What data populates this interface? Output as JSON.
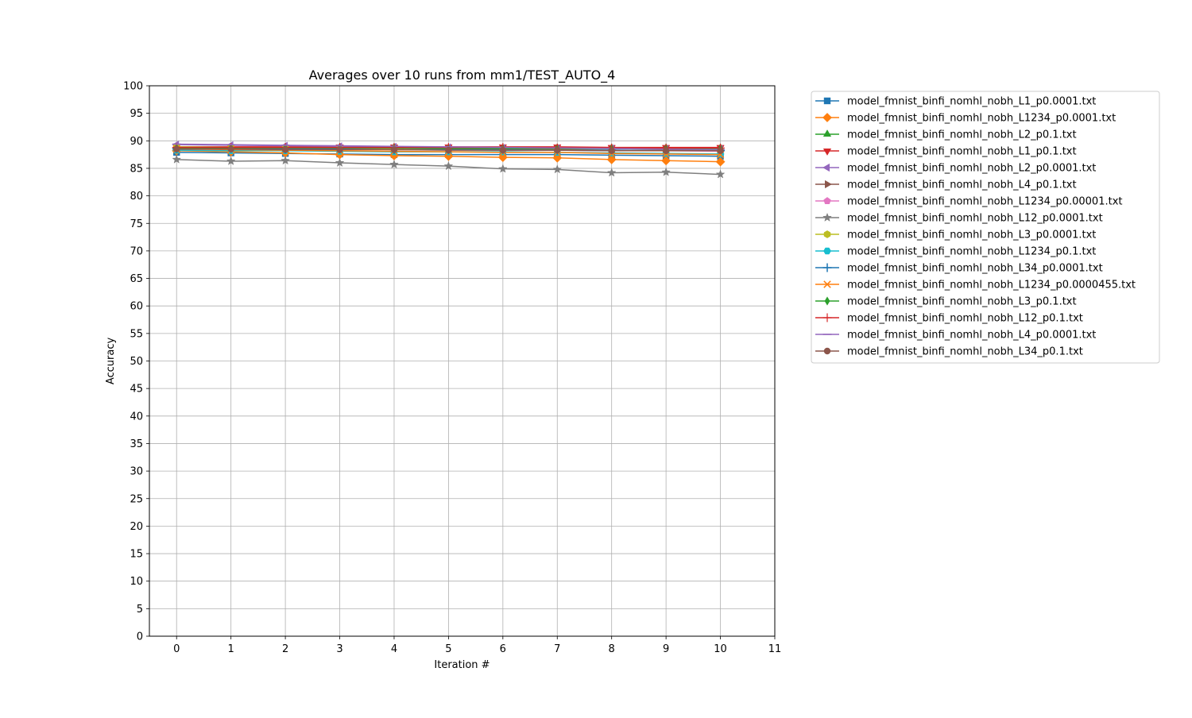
{
  "chart_data": {
    "type": "line",
    "title": "Averages over 10 runs from mm1/TEST_AUTO_4",
    "xlabel": "Iteration #",
    "ylabel": "Accuracy",
    "xlim": [
      -0.5,
      11
    ],
    "ylim": [
      0,
      100
    ],
    "x_ticks": [
      0,
      1,
      2,
      3,
      4,
      5,
      6,
      7,
      8,
      9,
      10,
      11
    ],
    "y_ticks": [
      0,
      5,
      10,
      15,
      20,
      25,
      30,
      35,
      40,
      45,
      50,
      55,
      60,
      65,
      70,
      75,
      80,
      85,
      90,
      95,
      100
    ],
    "grid": true,
    "legend_position": "outside-right-top",
    "x": [
      0,
      1,
      2,
      3,
      4,
      5,
      6,
      7,
      8,
      9,
      10
    ],
    "series": [
      {
        "name": "model_fmnist_binfi_nomhl_nobh_L1_p0.0001.txt",
        "color": "#1f77b4",
        "marker": "square",
        "values": [
          87.9,
          87.8,
          87.7,
          87.6,
          87.5,
          87.5,
          87.5,
          87.5,
          87.4,
          87.3,
          87.2
        ]
      },
      {
        "name": "model_fmnist_binfi_nomhl_nobh_L1234_p0.0001.txt",
        "color": "#ff7f0e",
        "marker": "diamond",
        "values": [
          88.2,
          88.0,
          87.8,
          87.5,
          87.3,
          87.2,
          87.0,
          86.9,
          86.6,
          86.4,
          86.2
        ]
      },
      {
        "name": "model_fmnist_binfi_nomhl_nobh_L2_p0.1.txt",
        "color": "#2ca02c",
        "marker": "triangle-up",
        "values": [
          88.8,
          88.8,
          88.8,
          88.8,
          88.8,
          88.7,
          88.7,
          88.7,
          88.7,
          88.7,
          88.7
        ]
      },
      {
        "name": "model_fmnist_binfi_nomhl_nobh_L1_p0.1.txt",
        "color": "#d62728",
        "marker": "triangle-down",
        "values": [
          88.9,
          88.9,
          88.9,
          88.9,
          88.9,
          88.9,
          88.9,
          88.9,
          88.8,
          88.8,
          88.8
        ]
      },
      {
        "name": "model_fmnist_binfi_nomhl_nobh_L2_p0.0001.txt",
        "color": "#9467bd",
        "marker": "triangle-left",
        "values": [
          89.3,
          89.2,
          89.1,
          89.0,
          88.9,
          88.8,
          88.7,
          88.6,
          88.6,
          88.5,
          88.5
        ]
      },
      {
        "name": "model_fmnist_binfi_nomhl_nobh_L4_p0.1.txt",
        "color": "#8c564b",
        "marker": "triangle-right",
        "values": [
          88.6,
          88.6,
          88.5,
          88.5,
          88.5,
          88.4,
          88.4,
          88.4,
          88.3,
          88.3,
          88.3
        ]
      },
      {
        "name": "model_fmnist_binfi_nomhl_nobh_L1234_p0.00001.txt",
        "color": "#e377c2",
        "marker": "pentagon",
        "values": [
          88.7,
          88.6,
          88.5,
          88.5,
          88.4,
          88.4,
          88.3,
          88.3,
          88.2,
          88.2,
          88.1
        ]
      },
      {
        "name": "model_fmnist_binfi_nomhl_nobh_L12_p0.0001.txt",
        "color": "#7f7f7f",
        "marker": "star",
        "values": [
          86.6,
          86.3,
          86.4,
          86.0,
          85.7,
          85.4,
          84.9,
          84.8,
          84.2,
          84.3,
          83.9
        ]
      },
      {
        "name": "model_fmnist_binfi_nomhl_nobh_L3_p0.0001.txt",
        "color": "#bcbd22",
        "marker": "hexagon",
        "values": [
          88.9,
          88.8,
          88.7,
          88.6,
          88.6,
          88.5,
          88.4,
          88.3,
          88.3,
          88.2,
          88.2
        ]
      },
      {
        "name": "model_fmnist_binfi_nomhl_nobh_L1234_p0.1.txt",
        "color": "#17becf",
        "marker": "hexagon2",
        "values": [
          88.3,
          88.2,
          88.2,
          88.1,
          88.0,
          88.0,
          88.0,
          87.9,
          87.8,
          87.7,
          87.6
        ]
      },
      {
        "name": "model_fmnist_binfi_nomhl_nobh_L34_p0.0001.txt",
        "color": "#1f77b4",
        "marker": "plus",
        "values": [
          88.6,
          88.6,
          88.5,
          88.5,
          88.4,
          88.4,
          88.4,
          88.3,
          88.3,
          88.2,
          88.2
        ]
      },
      {
        "name": "model_fmnist_binfi_nomhl_nobh_L1234_p0.0000455.txt",
        "color": "#ff7f0e",
        "marker": "x",
        "values": [
          88.5,
          88.4,
          88.3,
          88.2,
          88.1,
          88.0,
          87.9,
          87.9,
          87.7,
          87.6,
          87.5
        ]
      },
      {
        "name": "model_fmnist_binfi_nomhl_nobh_L3_p0.1.txt",
        "color": "#2ca02c",
        "marker": "thin-diamond",
        "values": [
          88.7,
          88.7,
          88.7,
          88.7,
          88.7,
          88.6,
          88.6,
          88.6,
          88.6,
          88.6,
          88.6
        ]
      },
      {
        "name": "model_fmnist_binfi_nomhl_nobh_L12_p0.1.txt",
        "color": "#d62728",
        "marker": "vline-plus",
        "values": [
          88.8,
          88.8,
          88.8,
          88.8,
          88.8,
          88.8,
          88.8,
          88.7,
          88.7,
          88.7,
          88.7
        ]
      },
      {
        "name": "model_fmnist_binfi_nomhl_nobh_L4_p0.0001.txt",
        "color": "#9467bd",
        "marker": "hline",
        "values": [
          89.4,
          89.3,
          89.2,
          89.1,
          89.0,
          88.9,
          88.8,
          88.7,
          88.6,
          88.5,
          88.4
        ]
      },
      {
        "name": "model_fmnist_binfi_nomhl_nobh_L34_p0.1.txt",
        "color": "#8c564b",
        "marker": "circle",
        "values": [
          88.5,
          88.5,
          88.4,
          88.4,
          88.4,
          88.3,
          88.3,
          88.3,
          88.2,
          88.2,
          88.2
        ]
      }
    ]
  }
}
